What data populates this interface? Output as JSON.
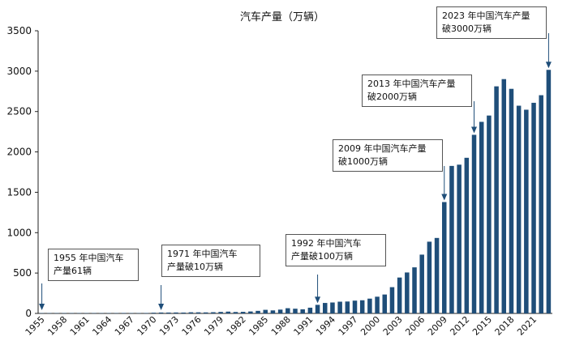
{
  "chart_data": {
    "type": "bar",
    "title": "汽车产量（万辆）",
    "xlabel": "",
    "ylabel": "",
    "ylim": [
      0,
      3500
    ],
    "yticks": [
      0,
      500,
      1000,
      1500,
      2000,
      2500,
      3000,
      3500
    ],
    "xtick_labels": [
      "1955",
      "1958",
      "1961",
      "1964",
      "1967",
      "1970",
      "1973",
      "1976",
      "1979",
      "1982",
      "1985",
      "1988",
      "1991",
      "1994",
      "1997",
      "2000",
      "2003",
      "2006",
      "2009",
      "2012",
      "2015",
      "2018",
      "2021"
    ],
    "bar_color": "#1f4e79",
    "categories": [
      "1955",
      "1956",
      "1957",
      "1958",
      "1959",
      "1960",
      "1961",
      "1962",
      "1963",
      "1964",
      "1965",
      "1966",
      "1967",
      "1968",
      "1969",
      "1970",
      "1971",
      "1972",
      "1973",
      "1974",
      "1975",
      "1976",
      "1977",
      "1978",
      "1979",
      "1980",
      "1981",
      "1982",
      "1983",
      "1984",
      "1985",
      "1986",
      "1987",
      "1988",
      "1989",
      "1990",
      "1991",
      "1992",
      "1993",
      "1994",
      "1995",
      "1996",
      "1997",
      "1998",
      "1999",
      "2000",
      "2001",
      "2002",
      "2003",
      "2004",
      "2005",
      "2006",
      "2007",
      "2008",
      "2009",
      "2010",
      "2011",
      "2012",
      "2013",
      "2014",
      "2015",
      "2016",
      "2017",
      "2018",
      "2019",
      "2020",
      "2021",
      "2022",
      "2023"
    ],
    "values": [
      0.0061,
      0.16,
      0.79,
      1.6,
      1.96,
      2.26,
      0.36,
      0.97,
      2.09,
      2.81,
      4.05,
      5.59,
      2.04,
      2.51,
      5.31,
      8.72,
      11.1,
      10.82,
      11.62,
      10.48,
      13.98,
      13.52,
      12.54,
      14.91,
      18.57,
      22.23,
      17.56,
      19.63,
      23.98,
      31.64,
      44.34,
      37.28,
      47.18,
      64.47,
      58.35,
      50.9,
      70.9,
      106.2,
      129.7,
      135.3,
      145.3,
      147.5,
      158.3,
      162.8,
      183.2,
      206.9,
      234.2,
      325.1,
      444.4,
      507.1,
      570.5,
      727.9,
      888.2,
      934.5,
      1379.1,
      1826.5,
      1841.9,
      1927.2,
      2211.7,
      2372.3,
      2450.3,
      2811.9,
      2901.5,
      2780.9,
      2572.1,
      2522.5,
      2608.2,
      2702.1,
      3016.1
    ],
    "annotations": [
      {
        "lines": [
          "1955 年中国汽车",
          "产量61辆"
        ]
      },
      {
        "lines": [
          "1971 年中国汽车",
          "产量破10万辆"
        ]
      },
      {
        "lines": [
          "1992 年中国汽车",
          "产量破100万辆"
        ]
      },
      {
        "lines": [
          "2009 年中国汽车产量",
          "破1000万辆"
        ]
      },
      {
        "lines": [
          "2013 年中国汽车产量",
          "破2000万辆"
        ]
      },
      {
        "lines": [
          "2023 年中国汽车产量",
          "破3000万辆"
        ]
      }
    ]
  }
}
